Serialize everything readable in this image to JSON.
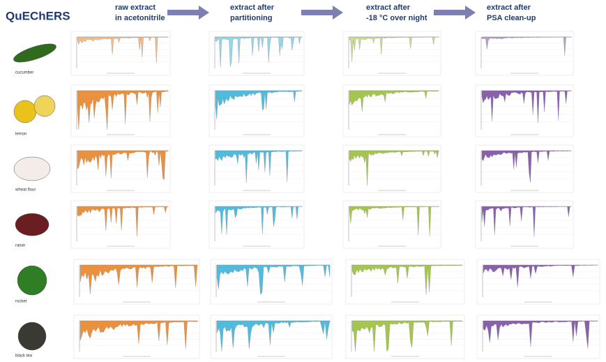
{
  "title": "QuEChERS",
  "columns": [
    {
      "lines": [
        "raw extract",
        "in acetonitrile"
      ]
    },
    {
      "lines": [
        "extract after",
        "partitioning"
      ]
    },
    {
      "lines": [
        "extract after",
        "-18 °C over night"
      ]
    },
    {
      "lines": [
        "extract after",
        "PSA clean-up"
      ]
    }
  ],
  "rows": [
    "cucumber",
    "lemon",
    "wheat flour",
    "raisin",
    "rocket",
    "black tea"
  ]
}
